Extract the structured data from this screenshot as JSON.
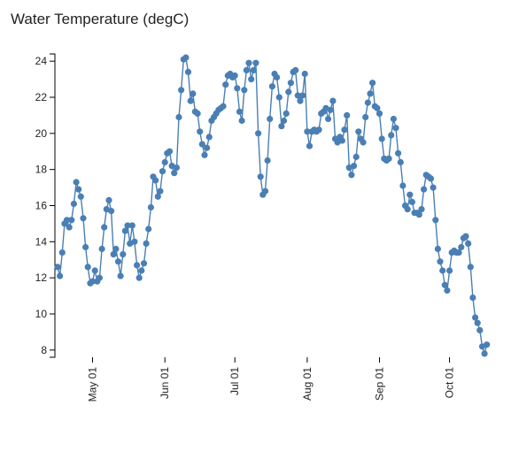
{
  "chart_data": {
    "type": "line",
    "title": "Water Temperature (degC)",
    "xlabel": "",
    "ylabel": "",
    "grid": false,
    "x_tick_labels": [
      "May 01",
      "Jun 01",
      "Jul 01",
      "Aug 01",
      "Sep 01",
      "Oct 01"
    ],
    "y_ticks": [
      8,
      10,
      12,
      14,
      16,
      18,
      20,
      22,
      24
    ],
    "ylim": [
      7.6,
      24.4
    ],
    "xlim": [
      "2019-04-16",
      "2019-10-19"
    ],
    "series": [
      {
        "color": "#4a7fb5",
        "start": "2019-04-16",
        "step_days": 1,
        "values": [
          12.6,
          12.1,
          13.4,
          15.0,
          15.2,
          14.8,
          15.2,
          16.1,
          17.3,
          16.9,
          16.5,
          15.3,
          13.7,
          12.6,
          11.7,
          11.8,
          12.4,
          11.8,
          12.0,
          13.6,
          14.8,
          15.8,
          16.3,
          15.7,
          13.3,
          13.6,
          12.9,
          12.1,
          13.3,
          14.6,
          14.9,
          13.9,
          14.9,
          14.0,
          12.7,
          12.0,
          12.4,
          12.8,
          13.9,
          14.7,
          15.9,
          17.6,
          17.4,
          16.5,
          16.8,
          17.9,
          18.4,
          18.9,
          19.0,
          18.2,
          17.8,
          18.1,
          20.9,
          22.4,
          24.1,
          24.2,
          23.4,
          21.8,
          22.2,
          21.2,
          21.1,
          20.1,
          19.4,
          18.8,
          19.2,
          19.8,
          20.7,
          20.9,
          21.1,
          21.3,
          21.4,
          21.5,
          22.7,
          23.2,
          23.3,
          23.1,
          23.2,
          22.5,
          21.2,
          20.7,
          22.4,
          23.5,
          23.9,
          23.0,
          23.5,
          23.9,
          20.0,
          17.6,
          16.6,
          16.8,
          18.5,
          20.8,
          22.6,
          23.3,
          23.1,
          22.0,
          20.4,
          20.7,
          21.1,
          22.3,
          22.8,
          23.4,
          23.5,
          22.1,
          21.8,
          22.1,
          23.3,
          20.1,
          19.3,
          20.1,
          20.2,
          20.1,
          20.2,
          21.1,
          21.2,
          21.4,
          20.8,
          21.3,
          21.8,
          19.7,
          19.5,
          19.8,
          19.6,
          20.2,
          21.0,
          18.1,
          17.7,
          18.2,
          18.7,
          20.1,
          19.7,
          19.5,
          20.9,
          21.7,
          22.2,
          22.8,
          21.5,
          21.4,
          21.1,
          19.7,
          18.6,
          18.5,
          18.6,
          19.9,
          20.8,
          20.3,
          18.9,
          18.4,
          17.1,
          16.0,
          15.8,
          16.6,
          16.2,
          15.6,
          15.6,
          15.5,
          15.8,
          16.9,
          17.7,
          17.6,
          17.5,
          17.0,
          15.2,
          13.6,
          12.9,
          12.4,
          11.6,
          11.3,
          12.4,
          13.4,
          13.5,
          13.4,
          13.4,
          13.7,
          14.2,
          14.3,
          13.9,
          12.6,
          10.9,
          9.8,
          9.5,
          9.1,
          8.2,
          7.8,
          8.3
        ]
      }
    ]
  }
}
